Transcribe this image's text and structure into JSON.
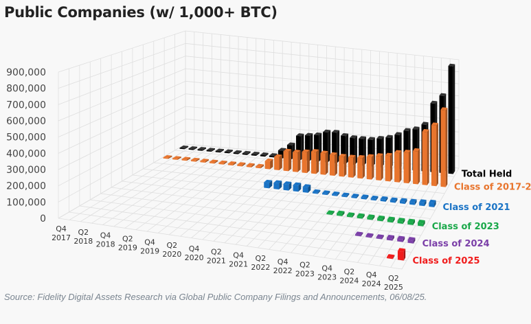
{
  "title": "Public Companies (w/ 1,000+ BTC)",
  "source": "Source: Fidelity Digital Assets Research via Global Public Company Filings and Announcements, 06/08/25.",
  "chart_data": {
    "type": "bar",
    "subtype": "3d-bar",
    "title": "Public Companies (w/ 1,000+ BTC)",
    "xlabel": "",
    "ylabel": "",
    "ylim": [
      0,
      900000
    ],
    "yticks": [
      0,
      100000,
      200000,
      300000,
      400000,
      500000,
      600000,
      700000,
      800000,
      900000
    ],
    "ytick_labels": [
      "0",
      "100,000",
      "200,000",
      "300,000",
      "400,000",
      "500,000",
      "600,000",
      "700,000",
      "800,000",
      "900,000"
    ],
    "grid": true,
    "legend_placement": "right",
    "categories": [
      "Q4 2017",
      "Q1 2018",
      "Q2 2018",
      "Q3 2018",
      "Q4 2018",
      "Q1 2019",
      "Q2 2019",
      "Q3 2019",
      "Q4 2019",
      "Q1 2020",
      "Q2 2020",
      "Q3 2020",
      "Q4 2020",
      "Q1 2021",
      "Q2 2021",
      "Q3 2021",
      "Q4 2021",
      "Q1 2022",
      "Q2 2022",
      "Q3 2022",
      "Q4 2022",
      "Q1 2023",
      "Q2 2023",
      "Q3 2023",
      "Q4 2023",
      "Q1 2024",
      "Q2 2024",
      "Q3 2024",
      "Q4 2024",
      "Q1 2025",
      "Q2 2025"
    ],
    "xtick_labels": [
      [
        "Q4",
        "2017"
      ],
      [
        "Q2",
        "2018"
      ],
      [
        "Q4",
        "2018"
      ],
      [
        "Q2",
        "2019"
      ],
      [
        "Q4",
        "2019"
      ],
      [
        "Q2",
        "2020"
      ],
      [
        "Q4",
        "2020"
      ],
      [
        "Q2",
        "2021"
      ],
      [
        "Q4",
        "2021"
      ],
      [
        "Q2",
        "2022"
      ],
      [
        "Q4",
        "2022"
      ],
      [
        "Q2",
        "2023"
      ],
      [
        "Q4",
        "2023"
      ],
      [
        "Q2",
        "2024"
      ],
      [
        "Q4",
        "2024"
      ],
      [
        "Q2",
        "2025"
      ]
    ],
    "series": [
      {
        "name": "Total Held",
        "color": "#000000",
        "values": [
          8000,
          8000,
          9000,
          9000,
          9000,
          9000,
          9000,
          9500,
          10000,
          10500,
          11000,
          60000,
          110000,
          190000,
          200000,
          210000,
          240000,
          245000,
          225000,
          215000,
          215000,
          215000,
          230000,
          245000,
          275000,
          315000,
          335000,
          380000,
          560000,
          630000,
          880000
        ]
      },
      {
        "name": "Class of 2017-20",
        "color": "#e8752e",
        "values": [
          8000,
          8000,
          9000,
          9000,
          9000,
          9000,
          9000,
          9500,
          10000,
          10500,
          11000,
          60000,
          100000,
          150000,
          150000,
          160000,
          170000,
          165000,
          160000,
          155000,
          155000,
          160000,
          175000,
          190000,
          200000,
          230000,
          240000,
          260000,
          420000,
          480000,
          610000
        ]
      },
      {
        "name": "Class of 2021",
        "color": "#1a73c5",
        "values": [
          null,
          null,
          null,
          null,
          null,
          null,
          null,
          null,
          null,
          null,
          null,
          null,
          null,
          40000,
          45000,
          45000,
          45000,
          40000,
          10000,
          10000,
          10000,
          10000,
          10000,
          12000,
          12000,
          15000,
          15000,
          18000,
          20000,
          25000,
          30000
        ]
      },
      {
        "name": "Class of 2023",
        "color": "#1aa84a",
        "values": [
          null,
          null,
          null,
          null,
          null,
          null,
          null,
          null,
          null,
          null,
          null,
          null,
          null,
          null,
          null,
          null,
          null,
          null,
          null,
          null,
          null,
          8000,
          15000,
          12000,
          14000,
          15000,
          16000,
          17000,
          18000,
          20000,
          22000
        ]
      },
      {
        "name": "Class of 2024",
        "color": "#7b3fa8",
        "values": [
          null,
          null,
          null,
          null,
          null,
          null,
          null,
          null,
          null,
          null,
          null,
          null,
          null,
          null,
          null,
          null,
          null,
          null,
          null,
          null,
          null,
          null,
          null,
          null,
          null,
          8000,
          8000,
          9000,
          15000,
          18000,
          20000
        ]
      },
      {
        "name": "Class of 2025",
        "color": "#f01c1c",
        "values": [
          null,
          null,
          null,
          null,
          null,
          null,
          null,
          null,
          null,
          null,
          null,
          null,
          null,
          null,
          null,
          null,
          null,
          null,
          null,
          null,
          null,
          null,
          null,
          null,
          null,
          null,
          null,
          null,
          null,
          8000,
          60000
        ]
      }
    ]
  }
}
